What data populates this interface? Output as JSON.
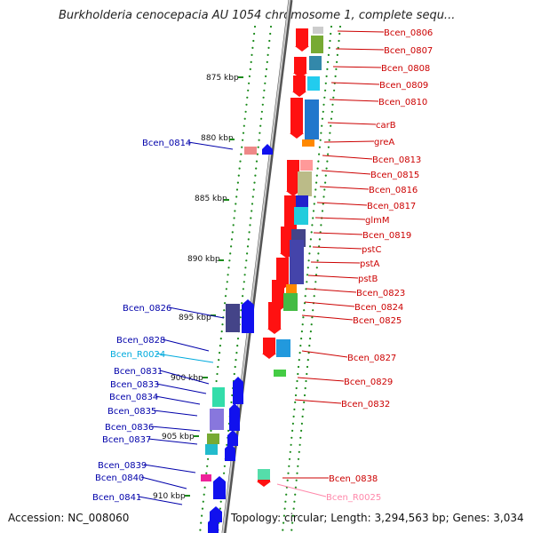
{
  "title": "Burkholderia cenocepacia AU 1054 chromosome 1, complete sequ...",
  "footer": {
    "accession": "Accession: NC_008060",
    "topology": "Topology: circular; Length: 3,294,563 bp; Genes: 3,034"
  },
  "colors": {
    "forward_label": "#cc0000",
    "reverse_label": "#0000aa",
    "rna_reverse_label": "#00aadd",
    "rna_forward_label": "#ff88aa",
    "backbone": "#888888",
    "tick": "#1a8a1a"
  },
  "kbp_labels": [
    "875 kbp",
    "880 kbp",
    "885 kbp",
    "890 kbp",
    "895 kbp",
    "900 kbp",
    "905 kbp",
    "910 kbp"
  ],
  "forward_genes": [
    "Bcen_0806",
    "Bcen_0807",
    "Bcen_0808",
    "Bcen_0809",
    "Bcen_0810",
    "carB",
    "greA",
    "Bcen_0813",
    "Bcen_0815",
    "Bcen_0816",
    "Bcen_0817",
    "glmM",
    "Bcen_0819",
    "pstC",
    "pstA",
    "pstB",
    "Bcen_0823",
    "Bcen_0824",
    "Bcen_0825",
    "Bcen_0827",
    "Bcen_0829",
    "Bcen_0832",
    "Bcen_0838",
    "Bcen_R0025"
  ],
  "reverse_genes": [
    "Bcen_0814",
    "Bcen_0826",
    "Bcen_0828",
    "Bcen_R0024",
    "Bcen_0831",
    "Bcen_0833",
    "Bcen_0834",
    "Bcen_0835",
    "Bcen_0836",
    "Bcen_0837",
    "Bcen_0839",
    "Bcen_0840",
    "Bcen_0841"
  ]
}
